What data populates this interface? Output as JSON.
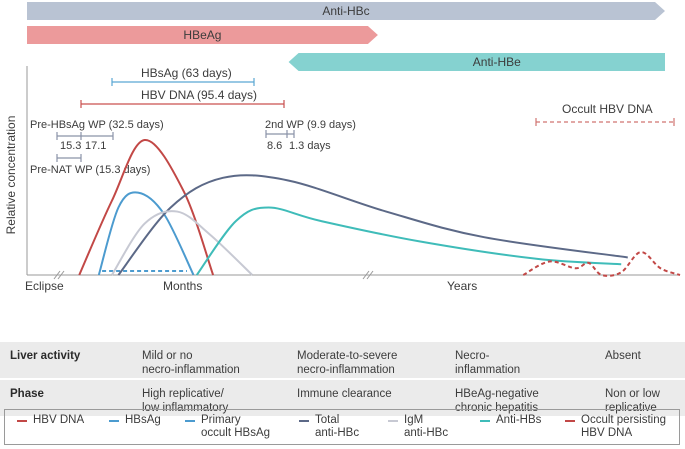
{
  "chart_data": {
    "type": "line",
    "title": "",
    "ylabel": "Relative concentration",
    "xlabel": "",
    "x_segments": [
      "Eclipse",
      "Months",
      "Years"
    ],
    "grid": false,
    "legend_position": "bottom",
    "bars": [
      {
        "name": "Anti-HBc",
        "start": 0.0,
        "end": 1.0,
        "direction": "right",
        "color": "#b9c3d3"
      },
      {
        "name": "HBeAg",
        "start": 0.0,
        "end": 0.55,
        "direction": "right",
        "color": "#ec9a9b"
      },
      {
        "name": "Anti-HBe",
        "start": 0.41,
        "end": 1.0,
        "direction": "left",
        "color": "#85d2d0"
      }
    ],
    "intervals": [
      {
        "name": "HBsAg (63 days)",
        "label": "HBsAg (63 days)",
        "color": "#5aa7d3"
      },
      {
        "name": "HBV DNA (95.4 days)",
        "label": "HBV DNA (95.4 days)",
        "color": "#c9514f"
      },
      {
        "name": "Pre-HBsAg WP (32.5 days)",
        "label": "Pre-HBsAg WP (32.5 days)",
        "sub_labels": [
          "15.3",
          "17.1"
        ],
        "color": "#8a93a8"
      },
      {
        "name": "Pre-NAT WP (15.3 days)",
        "label": "Pre-NAT WP (15.3 days)",
        "color": "#8a93a8"
      },
      {
        "name": "2nd WP (9.9 days)",
        "label": "2nd WP (9.9 days)",
        "sub_labels": [
          "8.6",
          "1.3 days"
        ],
        "color": "#8a93a8"
      },
      {
        "name": "Occult HBV DNA",
        "label": "Occult HBV DNA",
        "color": "#d07470",
        "style": "dashed"
      }
    ],
    "series": [
      {
        "name": "HBV DNA",
        "color": "#c24846",
        "style": "solid",
        "points": [
          [
            0.08,
            0
          ],
          [
            0.13,
            0.55
          ],
          [
            0.18,
            1.0
          ],
          [
            0.24,
            0.62
          ],
          [
            0.285,
            0
          ]
        ]
      },
      {
        "name": "HBsAg",
        "color": "#4c9bcf",
        "style": "solid",
        "points": [
          [
            0.11,
            0
          ],
          [
            0.14,
            0.5
          ],
          [
            0.17,
            0.61
          ],
          [
            0.21,
            0.45
          ],
          [
            0.255,
            0
          ]
        ]
      },
      {
        "name": "Primary occult HBsAg",
        "color": "#4c9bcf",
        "style": "dashed",
        "points": [
          [
            0.115,
            0.03
          ],
          [
            0.245,
            0.03
          ]
        ]
      },
      {
        "name": "Total anti-HBc",
        "color": "#5c6987",
        "style": "solid",
        "points": [
          [
            0.14,
            0
          ],
          [
            0.22,
            0.5
          ],
          [
            0.3,
            0.72
          ],
          [
            0.4,
            0.7
          ],
          [
            0.55,
            0.47
          ],
          [
            0.7,
            0.28
          ],
          [
            0.92,
            0.13
          ]
        ]
      },
      {
        "name": "IgM anti-HBc",
        "color": "#c7c9d3",
        "style": "solid",
        "points": [
          [
            0.13,
            0
          ],
          [
            0.18,
            0.38
          ],
          [
            0.23,
            0.47
          ],
          [
            0.28,
            0.3
          ],
          [
            0.345,
            0
          ]
        ]
      },
      {
        "name": "Anti-HBs",
        "color": "#3fbcb9",
        "style": "solid",
        "points": [
          [
            0.26,
            0
          ],
          [
            0.32,
            0.4
          ],
          [
            0.37,
            0.5
          ],
          [
            0.45,
            0.4
          ],
          [
            0.6,
            0.25
          ],
          [
            0.78,
            0.12
          ],
          [
            0.91,
            0.08
          ]
        ]
      },
      {
        "name": "Occult persisting HBV DNA",
        "color": "#c24846",
        "style": "dashed",
        "points": [
          [
            0.76,
            0
          ],
          [
            0.8,
            0.1
          ],
          [
            0.84,
            0.05
          ],
          [
            0.86,
            0.09
          ],
          [
            0.88,
            0
          ],
          [
            0.91,
            0.02
          ],
          [
            0.94,
            0.17
          ],
          [
            0.97,
            0.05
          ],
          [
            1.0,
            0
          ]
        ]
      }
    ]
  },
  "table": {
    "rows": [
      {
        "header": "Liver activity",
        "cells": [
          "Mild or no\nnecro-inflammation",
          "Moderate-to-severe\nnecro-inflammation",
          "Necro-\ninflammation",
          "Absent"
        ]
      },
      {
        "header": "Phase",
        "cells": [
          "High replicative/\nlow inflammatory",
          "Immune clearance",
          "HBeAg-negative\nchronic hepatitis",
          "Non or low\nreplicative"
        ]
      }
    ]
  },
  "legend": [
    {
      "label": "HBV DNA",
      "color": "#c24846",
      "style": "solid"
    },
    {
      "label": "HBsAg",
      "color": "#4c9bcf",
      "style": "solid"
    },
    {
      "label": "Primary\noccult HBsAg",
      "color": "#4c9bcf",
      "style": "dashed"
    },
    {
      "label": "Total\nanti-HBc",
      "color": "#5c6987",
      "style": "solid"
    },
    {
      "label": "IgM\nanti-HBc",
      "color": "#c7c9d3",
      "style": "solid"
    },
    {
      "label": "Anti-HBs",
      "color": "#3fbcb9",
      "style": "solid"
    },
    {
      "label": "Occult persisting\nHBV DNA",
      "color": "#c24846",
      "style": "dashed"
    }
  ]
}
